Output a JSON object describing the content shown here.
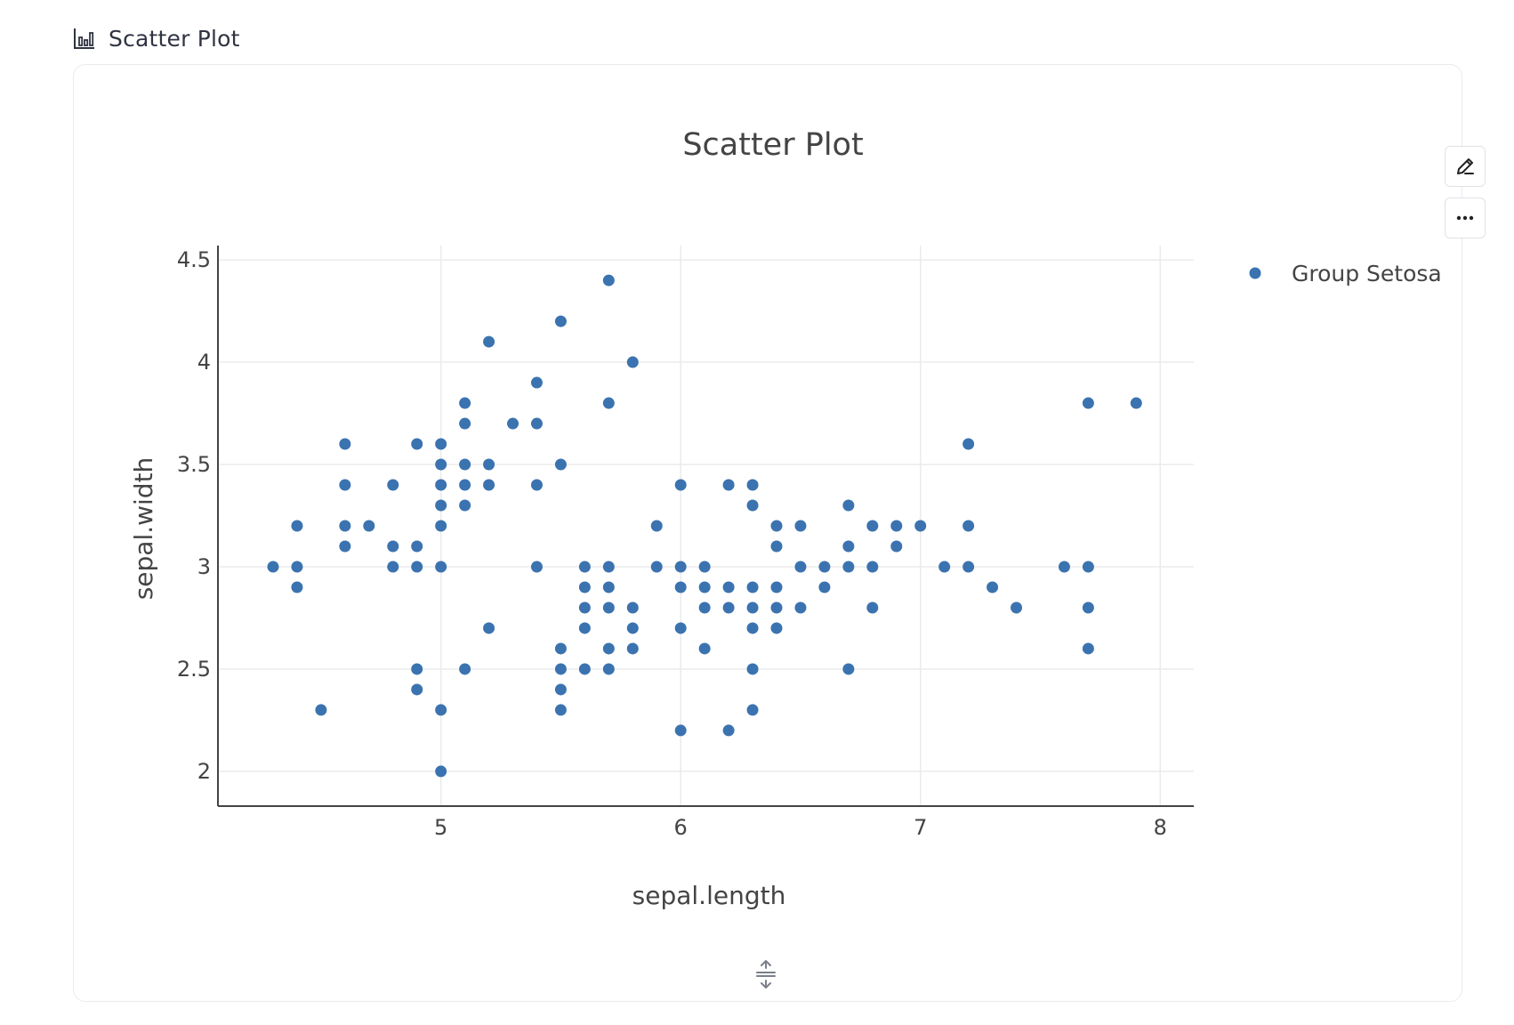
{
  "header": {
    "title": "Scatter Plot",
    "icon": "bar-chart-icon"
  },
  "toolbar": {
    "edit_icon": "pencil-icon",
    "more_icon": "more-horizontal-icon",
    "resize_icon": "resize-vertical-icon"
  },
  "colors": {
    "marker": "#3b73b0",
    "grid": "#ebebeb",
    "axis": "#444444"
  },
  "chart_data": {
    "type": "scatter",
    "title": "Scatter Plot",
    "xlabel": "sepal.length",
    "ylabel": "sepal.width",
    "xlim": [
      4.07,
      8.14
    ],
    "ylim": [
      1.83,
      4.57
    ],
    "xticks": [
      5,
      6,
      7,
      8
    ],
    "yticks": [
      2,
      2.5,
      3,
      3.5,
      4,
      4.5
    ],
    "grid": true,
    "legend": "top-right",
    "series": [
      {
        "name": "Group Setosa",
        "color": "#3b73b0",
        "points": [
          [
            4.3,
            3.0
          ],
          [
            4.4,
            3.2
          ],
          [
            4.4,
            3.0
          ],
          [
            4.4,
            2.9
          ],
          [
            4.5,
            2.3
          ],
          [
            4.6,
            3.6
          ],
          [
            4.6,
            3.4
          ],
          [
            4.6,
            3.2
          ],
          [
            4.6,
            3.1
          ],
          [
            4.7,
            3.2
          ],
          [
            4.8,
            3.4
          ],
          [
            4.8,
            3.1
          ],
          [
            4.8,
            3.0
          ],
          [
            4.9,
            3.6
          ],
          [
            4.9,
            3.1
          ],
          [
            4.9,
            3.0
          ],
          [
            4.9,
            2.5
          ],
          [
            4.9,
            2.4
          ],
          [
            5.0,
            3.6
          ],
          [
            5.0,
            3.5
          ],
          [
            5.0,
            3.4
          ],
          [
            5.0,
            3.3
          ],
          [
            5.0,
            3.2
          ],
          [
            5.0,
            3.0
          ],
          [
            5.0,
            2.3
          ],
          [
            5.0,
            2.0
          ],
          [
            5.1,
            3.8
          ],
          [
            5.1,
            3.7
          ],
          [
            5.1,
            3.5
          ],
          [
            5.1,
            3.4
          ],
          [
            5.1,
            3.3
          ],
          [
            5.1,
            2.5
          ],
          [
            5.2,
            4.1
          ],
          [
            5.2,
            3.5
          ],
          [
            5.2,
            3.4
          ],
          [
            5.2,
            2.7
          ],
          [
            5.3,
            3.7
          ],
          [
            5.4,
            3.9
          ],
          [
            5.4,
            3.7
          ],
          [
            5.4,
            3.4
          ],
          [
            5.4,
            3.0
          ],
          [
            5.5,
            4.2
          ],
          [
            5.5,
            3.5
          ],
          [
            5.5,
            2.6
          ],
          [
            5.5,
            2.5
          ],
          [
            5.5,
            2.4
          ],
          [
            5.5,
            2.3
          ],
          [
            5.6,
            3.0
          ],
          [
            5.6,
            2.9
          ],
          [
            5.6,
            2.8
          ],
          [
            5.6,
            2.7
          ],
          [
            5.6,
            2.5
          ],
          [
            5.7,
            4.4
          ],
          [
            5.7,
            3.8
          ],
          [
            5.7,
            3.0
          ],
          [
            5.7,
            2.9
          ],
          [
            5.7,
            2.8
          ],
          [
            5.7,
            2.6
          ],
          [
            5.7,
            2.5
          ],
          [
            5.8,
            4.0
          ],
          [
            5.8,
            2.8
          ],
          [
            5.8,
            2.7
          ],
          [
            5.8,
            2.6
          ],
          [
            5.9,
            3.2
          ],
          [
            5.9,
            3.0
          ],
          [
            6.0,
            3.4
          ],
          [
            6.0,
            3.0
          ],
          [
            6.0,
            2.9
          ],
          [
            6.0,
            2.7
          ],
          [
            6.0,
            2.2
          ],
          [
            6.1,
            3.0
          ],
          [
            6.1,
            2.9
          ],
          [
            6.1,
            2.8
          ],
          [
            6.1,
            2.6
          ],
          [
            6.2,
            3.4
          ],
          [
            6.2,
            2.9
          ],
          [
            6.2,
            2.8
          ],
          [
            6.2,
            2.2
          ],
          [
            6.3,
            3.4
          ],
          [
            6.3,
            3.3
          ],
          [
            6.3,
            2.9
          ],
          [
            6.3,
            2.8
          ],
          [
            6.3,
            2.7
          ],
          [
            6.3,
            2.5
          ],
          [
            6.3,
            2.3
          ],
          [
            6.4,
            3.2
          ],
          [
            6.4,
            3.1
          ],
          [
            6.4,
            2.9
          ],
          [
            6.4,
            2.8
          ],
          [
            6.4,
            2.7
          ],
          [
            6.5,
            3.2
          ],
          [
            6.5,
            3.0
          ],
          [
            6.5,
            2.8
          ],
          [
            6.6,
            3.0
          ],
          [
            6.6,
            2.9
          ],
          [
            6.7,
            3.3
          ],
          [
            6.7,
            3.1
          ],
          [
            6.7,
            3.0
          ],
          [
            6.7,
            2.5
          ],
          [
            6.8,
            3.2
          ],
          [
            6.8,
            3.0
          ],
          [
            6.8,
            2.8
          ],
          [
            6.9,
            3.2
          ],
          [
            6.9,
            3.1
          ],
          [
            7.0,
            3.2
          ],
          [
            7.1,
            3.0
          ],
          [
            7.2,
            3.6
          ],
          [
            7.2,
            3.2
          ],
          [
            7.2,
            3.0
          ],
          [
            7.3,
            2.9
          ],
          [
            7.4,
            2.8
          ],
          [
            7.6,
            3.0
          ],
          [
            7.7,
            3.8
          ],
          [
            7.7,
            3.0
          ],
          [
            7.7,
            2.8
          ],
          [
            7.7,
            2.6
          ],
          [
            7.9,
            3.8
          ]
        ]
      }
    ]
  }
}
